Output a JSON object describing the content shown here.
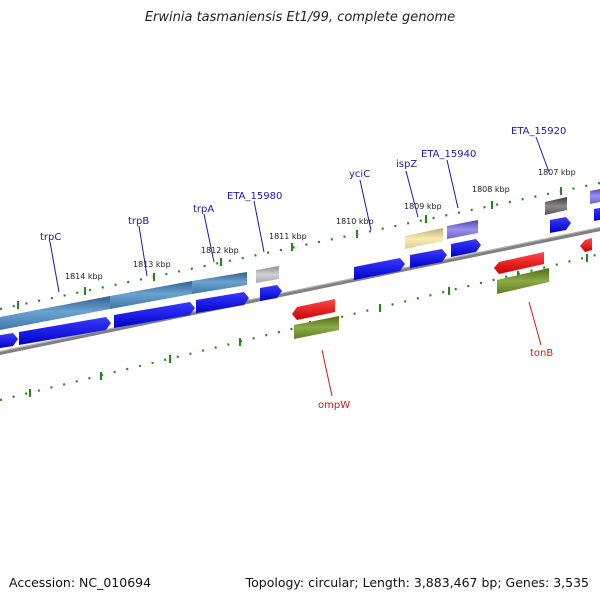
{
  "title": "Erwinia tasmaniensis Et1/99, complete genome",
  "footer": {
    "accession": "Accession: NC_010694",
    "topology": "Topology: circular; Length: 3,883,467 bp; Genes: 3,535"
  },
  "kbp_ticks": [
    "1814 kbp",
    "1813 kbp",
    "1812 kbp",
    "1811 kbp",
    "1810 kbp",
    "1809 kbp",
    "1808 kbp",
    "1807 kbp"
  ],
  "forward_labels": [
    "trpC",
    "trpB",
    "trpA",
    "ETA_15980",
    "yciC",
    "ispZ",
    "ETA_15940",
    "ETA_15920"
  ],
  "reverse_labels": [
    "ompW",
    "tonB"
  ],
  "colors": {
    "backbone": "#7f7f7f",
    "cds": "#0000e6",
    "trp_gene": "#4a86b6",
    "pseudo_grey": "#b4b4b8",
    "ispZ_gene": "#e8dc98",
    "eta_purple": "#7a6edc",
    "eta_dark": "#666666",
    "rev_cds": "#ee1111",
    "rev_gene": "#6c8a2c",
    "tick": "#1e8a1e",
    "label_fwd": "#1a1aa6",
    "label_rev": "#c81e1e"
  }
}
